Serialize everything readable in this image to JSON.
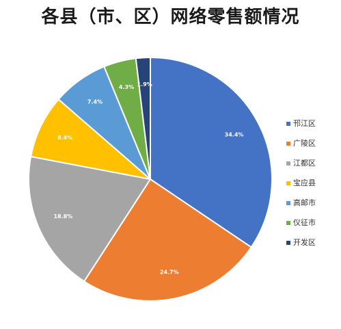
{
  "chart_data": {
    "type": "pie",
    "title": "各县（市、区）网络零售额情况",
    "legend_position": "right",
    "categories": [
      "邗江区",
      "广陵区",
      "江都区",
      "宝应县",
      "高邮市",
      "仪征市",
      "开发区"
    ],
    "values": [
      34.4,
      24.7,
      18.8,
      8.4,
      7.4,
      4.3,
      1.9
    ],
    "data_labels": [
      "34.4%",
      "24.7%",
      "18.8%",
      "8.4%",
      "7.4%",
      "4.3%",
      "1.9%"
    ],
    "colors": [
      "#4472C4",
      "#ED7D31",
      "#A5A5A5",
      "#FFC000",
      "#5B9BD5",
      "#70AD47",
      "#264478"
    ]
  }
}
